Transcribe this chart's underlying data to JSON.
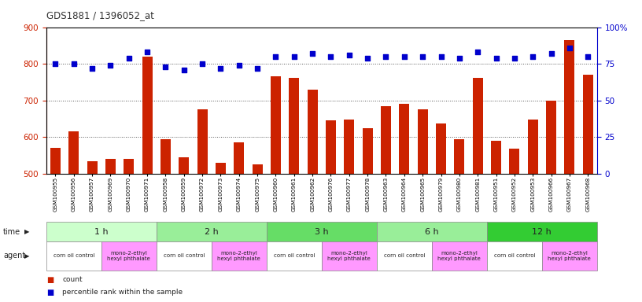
{
  "title": "GDS1881 / 1396052_at",
  "samples": [
    "GSM100955",
    "GSM100956",
    "GSM100957",
    "GSM100969",
    "GSM100970",
    "GSM100971",
    "GSM100958",
    "GSM100959",
    "GSM100972",
    "GSM100973",
    "GSM100974",
    "GSM100975",
    "GSM100960",
    "GSM100961",
    "GSM100962",
    "GSM100976",
    "GSM100977",
    "GSM100978",
    "GSM100963",
    "GSM100964",
    "GSM100965",
    "GSM100979",
    "GSM100980",
    "GSM100981",
    "GSM100951",
    "GSM100952",
    "GSM100953",
    "GSM100966",
    "GSM100967",
    "GSM100968"
  ],
  "counts": [
    570,
    615,
    535,
    540,
    540,
    820,
    595,
    545,
    675,
    530,
    585,
    525,
    765,
    762,
    730,
    645,
    648,
    625,
    685,
    690,
    676,
    638,
    595,
    762,
    590,
    568,
    648,
    700,
    865,
    770
  ],
  "percentiles": [
    75,
    75,
    72,
    74,
    79,
    83,
    73,
    71,
    75,
    72,
    74,
    72,
    80,
    80,
    82,
    80,
    81,
    79,
    80,
    80,
    80,
    80,
    79,
    83,
    79,
    79,
    80,
    82,
    86,
    80
  ],
  "ylim_left": [
    500,
    900
  ],
  "ylim_right": [
    0,
    100
  ],
  "yticks_left": [
    500,
    600,
    700,
    800,
    900
  ],
  "yticks_right": [
    0,
    25,
    50,
    75,
    100
  ],
  "ytick_labels_right": [
    "0",
    "25",
    "50",
    "75",
    "100%"
  ],
  "bar_color": "#cc2200",
  "dot_color": "#0000cc",
  "grid_color": "#000000",
  "time_groups": [
    {
      "label": "1 h",
      "start": 0,
      "end": 6,
      "color": "#ccffcc"
    },
    {
      "label": "2 h",
      "start": 6,
      "end": 12,
      "color": "#99ee99"
    },
    {
      "label": "3 h",
      "start": 12,
      "end": 18,
      "color": "#66dd66"
    },
    {
      "label": "6 h",
      "start": 18,
      "end": 24,
      "color": "#99ee99"
    },
    {
      "label": "12 h",
      "start": 24,
      "end": 30,
      "color": "#33cc33"
    }
  ],
  "agent_groups": [
    {
      "label": "corn oil control",
      "start": 0,
      "end": 3,
      "color": "#ffffff"
    },
    {
      "label": "mono-2-ethyl\nhexyl phthalate",
      "start": 3,
      "end": 6,
      "color": "#ff99ff"
    },
    {
      "label": "corn oil control",
      "start": 6,
      "end": 9,
      "color": "#ffffff"
    },
    {
      "label": "mono-2-ethyl\nhexyl phthalate",
      "start": 9,
      "end": 12,
      "color": "#ff99ff"
    },
    {
      "label": "corn oil control",
      "start": 12,
      "end": 15,
      "color": "#ffffff"
    },
    {
      "label": "mono-2-ethyl\nhexyl phthalate",
      "start": 15,
      "end": 18,
      "color": "#ff99ff"
    },
    {
      "label": "corn oil control",
      "start": 18,
      "end": 21,
      "color": "#ffffff"
    },
    {
      "label": "mono-2-ethyl\nhexyl phthalate",
      "start": 21,
      "end": 24,
      "color": "#ff99ff"
    },
    {
      "label": "corn oil control",
      "start": 24,
      "end": 27,
      "color": "#ffffff"
    },
    {
      "label": "mono-2-ethyl\nhexyl phthalate",
      "start": 27,
      "end": 30,
      "color": "#ff99ff"
    }
  ],
  "legend_count_color": "#cc2200",
  "legend_percentile_color": "#0000cc",
  "bg_color": "#ffffff",
  "axis_color_left": "#cc2200",
  "axis_color_right": "#0000cc"
}
